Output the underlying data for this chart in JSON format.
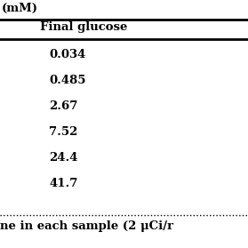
{
  "header_top": "(mM)",
  "col_header": "Final glucose",
  "values": [
    "0.034",
    "0.485",
    "2.67",
    "7.52",
    "24.4",
    "41.7"
  ],
  "footnote": "ne in each sample (2 μCi/r",
  "bg_color": "#ffffff",
  "text_color": "#000000",
  "line_color": "#000000",
  "header_fontsize": 9.5,
  "col_header_fontsize": 9.5,
  "data_fontsize": 9.5,
  "footnote_fontsize": 9.5,
  "fig_width": 2.79,
  "fig_height": 2.79,
  "dpi": 100
}
